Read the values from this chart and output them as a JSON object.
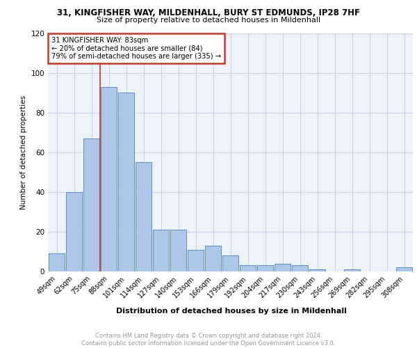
{
  "title1": "31, KINGFISHER WAY, MILDENHALL, BURY ST EDMUNDS, IP28 7HF",
  "title2": "Size of property relative to detached houses in Mildenhall",
  "xlabel": "Distribution of detached houses by size in Mildenhall",
  "ylabel": "Number of detached properties",
  "categories": [
    "49sqm",
    "62sqm",
    "75sqm",
    "88sqm",
    "101sqm",
    "114sqm",
    "127sqm",
    "140sqm",
    "153sqm",
    "166sqm",
    "179sqm",
    "192sqm",
    "204sqm",
    "217sqm",
    "230sqm",
    "243sqm",
    "256sqm",
    "269sqm",
    "282sqm",
    "295sqm",
    "308sqm"
  ],
  "values": [
    9,
    40,
    67,
    93,
    90,
    55,
    21,
    21,
    11,
    13,
    8,
    3,
    3,
    4,
    3,
    1,
    0,
    1,
    0,
    0,
    2
  ],
  "bar_color": "#aec6e8",
  "bar_edge_color": "#5b8fc9",
  "vline_x_index": 2.5,
  "vline_color": "#c0392b",
  "annotation_line1": "31 KINGFISHER WAY: 83sqm",
  "annotation_line2": "← 20% of detached houses are smaller (84)",
  "annotation_line3": "79% of semi-detached houses are larger (335) →",
  "annotation_box_color": "#c0392b",
  "ylim": [
    0,
    120
  ],
  "yticks": [
    0,
    20,
    40,
    60,
    80,
    100,
    120
  ],
  "grid_color": "#c8d0e0",
  "background_color": "#eef2fa",
  "footer_text": "Contains HM Land Registry data © Crown copyright and database right 2024.\nContains public sector information licensed under the Open Government Licence v3.0.",
  "footer_color": "#999999"
}
